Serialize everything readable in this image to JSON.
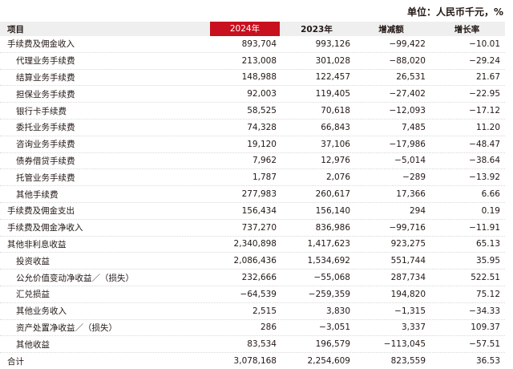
{
  "unit_label": "单位：人民币千元，%",
  "columns": [
    "项目",
    "2024年",
    "2023年",
    "增减额",
    "增长率"
  ],
  "rows": [
    {
      "label": "手续费及佣金收入",
      "indent": false,
      "v2024": "893,704",
      "v2023": "993,126",
      "change": "−99,422",
      "rate": "−10.01"
    },
    {
      "label": "代理业务手续费",
      "indent": true,
      "v2024": "213,008",
      "v2023": "301,028",
      "change": "−88,020",
      "rate": "−29.24"
    },
    {
      "label": "结算业务手续费",
      "indent": true,
      "v2024": "148,988",
      "v2023": "122,457",
      "change": "26,531",
      "rate": "21.67"
    },
    {
      "label": "担保业务手续费",
      "indent": true,
      "v2024": "92,003",
      "v2023": "119,405",
      "change": "−27,402",
      "rate": "−22.95"
    },
    {
      "label": "银行卡手续费",
      "indent": true,
      "v2024": "58,525",
      "v2023": "70,618",
      "change": "−12,093",
      "rate": "−17.12"
    },
    {
      "label": "委托业务手续费",
      "indent": true,
      "v2024": "74,328",
      "v2023": "66,843",
      "change": "7,485",
      "rate": "11.20"
    },
    {
      "label": "咨询业务手续费",
      "indent": true,
      "v2024": "19,120",
      "v2023": "37,106",
      "change": "−17,986",
      "rate": "−48.47"
    },
    {
      "label": "债券借贷手续费",
      "indent": true,
      "v2024": "7,962",
      "v2023": "12,976",
      "change": "−5,014",
      "rate": "−38.64"
    },
    {
      "label": "托管业务手续费",
      "indent": true,
      "v2024": "1,787",
      "v2023": "2,076",
      "change": "−289",
      "rate": "−13.92"
    },
    {
      "label": "其他手续费",
      "indent": true,
      "v2024": "277,983",
      "v2023": "260,617",
      "change": "17,366",
      "rate": "6.66"
    },
    {
      "label": "手续费及佣金支出",
      "indent": false,
      "v2024": "156,434",
      "v2023": "156,140",
      "change": "294",
      "rate": "0.19"
    },
    {
      "label": "手续费及佣金净收入",
      "indent": false,
      "v2024": "737,270",
      "v2023": "836,986",
      "change": "−99,716",
      "rate": "−11.91"
    },
    {
      "label": "其他非利息收益",
      "indent": false,
      "v2024": "2,340,898",
      "v2023": "1,417,623",
      "change": "923,275",
      "rate": "65.13"
    },
    {
      "label": "投资收益",
      "indent": true,
      "v2024": "2,086,436",
      "v2023": "1,534,692",
      "change": "551,744",
      "rate": "35.95"
    },
    {
      "label": "公允价值变动净收益／（损失）",
      "indent": true,
      "v2024": "232,666",
      "v2023": "−55,068",
      "change": "287,734",
      "rate": "522.51"
    },
    {
      "label": "汇兑损益",
      "indent": true,
      "v2024": "−64,539",
      "v2023": "−259,359",
      "change": "194,820",
      "rate": "75.12"
    },
    {
      "label": "其他业务收入",
      "indent": true,
      "v2024": "2,515",
      "v2023": "3,830",
      "change": "−1,315",
      "rate": "−34.33"
    },
    {
      "label": "资产处置净收益／（损失）",
      "indent": true,
      "v2024": "286",
      "v2023": "−3,051",
      "change": "3,337",
      "rate": "109.37"
    },
    {
      "label": "其他收益",
      "indent": true,
      "v2024": "83,534",
      "v2023": "196,579",
      "change": "−113,045",
      "rate": "−57.51"
    },
    {
      "label": "合计",
      "indent": false,
      "v2024": "3,078,168",
      "v2023": "2,254,609",
      "change": "823,559",
      "rate": "36.53"
    }
  ],
  "colors": {
    "accent": "#c8101e",
    "header_bg": "#efefef",
    "text": "#231815"
  }
}
